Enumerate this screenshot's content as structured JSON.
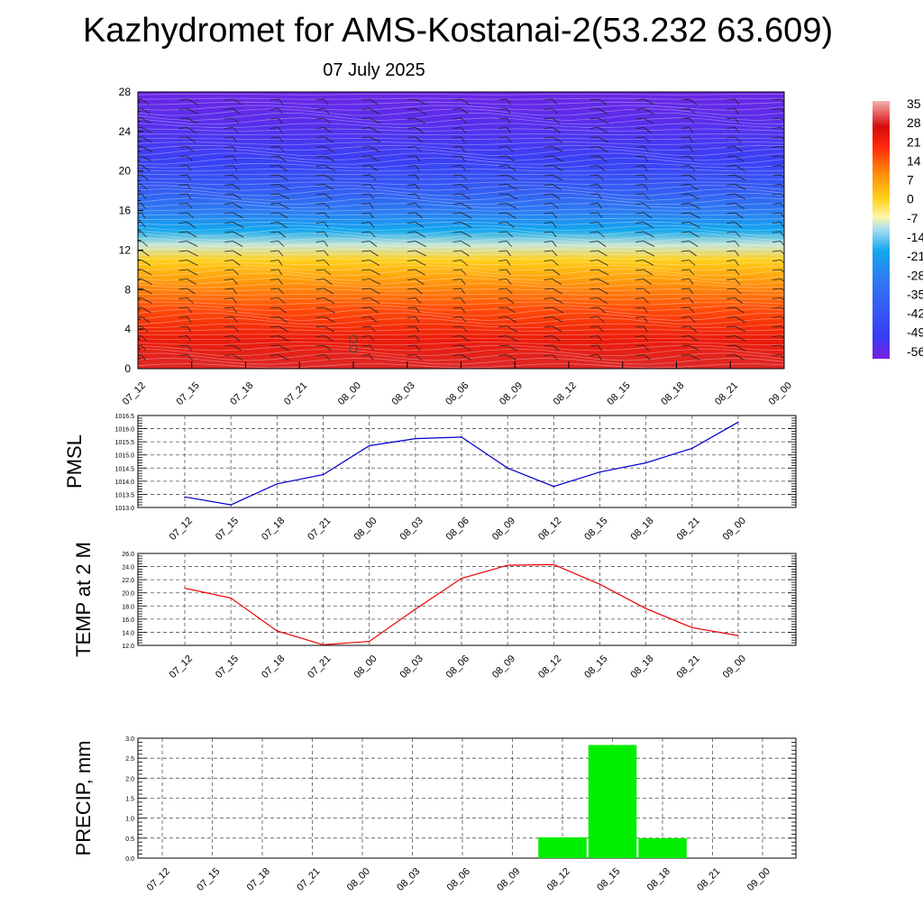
{
  "title": "Kazhydromet for AMS-Kostanai-2(53.232 63.609)",
  "subtitle": "07 July 2025",
  "time_labels": [
    "07_12",
    "07_15",
    "07_18",
    "07_21",
    "08_00",
    "08_03",
    "08_06",
    "08_09",
    "08_12",
    "08_15",
    "08_18",
    "08_21",
    "09_00"
  ],
  "chart_data": [
    {
      "type": "heatmap",
      "name": "cross-section",
      "ylim": [
        0,
        28
      ],
      "yticks": [
        "0",
        "4",
        "8",
        "12",
        "16",
        "20",
        "24",
        "28"
      ],
      "x": [
        "07_12",
        "07_15",
        "07_18",
        "07_21",
        "08_00",
        "08_03",
        "08_06",
        "08_09",
        "08_12",
        "08_15",
        "08_18",
        "08_21",
        "09_00"
      ],
      "colorbar": {
        "labels": [
          "35",
          "28",
          "21",
          "14",
          "7",
          "0",
          "-7",
          "-14",
          "-21",
          "-28",
          "-35",
          "-42",
          "-49",
          "-56"
        ],
        "range": [
          -60,
          38
        ]
      },
      "temperature_profile": [
        {
          "level": 0,
          "value": 30
        },
        {
          "level": 3,
          "value": 24
        },
        {
          "level": 6,
          "value": 17
        },
        {
          "level": 9,
          "value": 8
        },
        {
          "level": 11,
          "value": 1
        },
        {
          "level": 12.5,
          "value": -9
        },
        {
          "level": 14,
          "value": -19
        },
        {
          "level": 16,
          "value": -30
        },
        {
          "level": 18,
          "value": -40
        },
        {
          "level": 21,
          "value": -50
        },
        {
          "level": 25,
          "value": -56
        },
        {
          "level": 28,
          "value": -58
        }
      ]
    },
    {
      "type": "line",
      "ylabel": "PMSL",
      "ylim": [
        1013.0,
        1016.5
      ],
      "yticks": [
        "1013.0",
        "1013.5",
        "1014.0",
        "1014.5",
        "1015.0",
        "1015.5",
        "1016.0",
        "1016.5"
      ],
      "x": [
        "07_12",
        "07_15",
        "07_18",
        "07_21",
        "08_00",
        "08_03",
        "08_06",
        "08_09",
        "08_12",
        "08_15",
        "08_18",
        "08_21",
        "09_00"
      ],
      "series": [
        {
          "values": [
            1013.4,
            1013.1,
            1013.9,
            1014.25,
            1015.35,
            1015.62,
            1015.68,
            1014.5,
            1013.8,
            1014.35,
            1014.7,
            1015.25,
            1016.25
          ],
          "color": "#0000cc"
        }
      ]
    },
    {
      "type": "line",
      "ylabel": "TEMP at 2 M",
      "ylim": [
        12.0,
        26.0
      ],
      "yticks": [
        "12.0",
        "14.0",
        "16.0",
        "18.0",
        "20.0",
        "22.0",
        "24.0",
        "26.0"
      ],
      "x": [
        "07_12",
        "07_15",
        "07_18",
        "07_21",
        "08_00",
        "08_03",
        "08_06",
        "08_09",
        "08_12",
        "08_15",
        "08_18",
        "08_21",
        "09_00"
      ],
      "series": [
        {
          "values": [
            20.7,
            19.2,
            14.2,
            12.1,
            12.6,
            17.5,
            22.2,
            24.2,
            24.3,
            21.3,
            17.6,
            14.7,
            13.5
          ],
          "color": "#ee0000"
        }
      ]
    },
    {
      "type": "bar",
      "ylabel": "PRECIP, mm",
      "ylim": [
        0.0,
        3.0
      ],
      "yticks": [
        "0.0",
        "0.5",
        "1.0",
        "1.5",
        "2.0",
        "2.5",
        "3.0"
      ],
      "categories": [
        "07_12",
        "07_15",
        "07_18",
        "07_21",
        "08_00",
        "08_03",
        "08_06",
        "08_09",
        "08_12",
        "08_15",
        "08_18",
        "08_21",
        "09_00"
      ],
      "values": [
        0,
        0,
        0,
        0,
        0,
        0,
        0,
        0,
        0.52,
        2.83,
        0.5,
        0,
        0
      ],
      "color": "#00ee00"
    }
  ]
}
